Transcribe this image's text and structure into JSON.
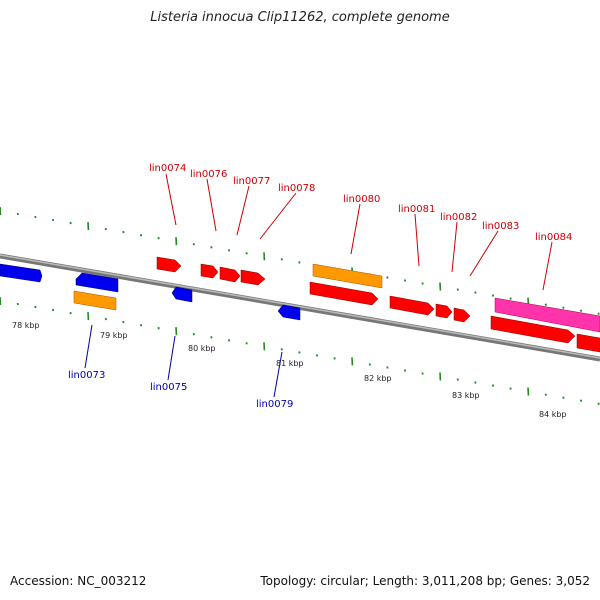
{
  "title": "Listeria innocua Clip11262, complete genome",
  "footer": {
    "accession": "Accession: NC_003212",
    "summary": "Topology: circular; Length: 3,011,208 bp; Genes: 3,052"
  },
  "colors": {
    "backbone": "#888888",
    "tick": "#228b22",
    "gene_red": "#ff0000",
    "gene_orange": "#ff9900",
    "gene_blue": "#0000ff",
    "gene_pink": "#ff33aa",
    "label_top": "#cc0000",
    "label_bottom": "#0000aa"
  },
  "kbp_labels": [
    "78 kbp",
    "79 kbp",
    "80 kbp",
    "81 kbp",
    "82 kbp",
    "83 kbp",
    "84 kbp"
  ],
  "top_labels": [
    "lin0074",
    "lin0076",
    "lin0077",
    "lin0078",
    "lin0080",
    "lin0081",
    "lin0082",
    "lin0083",
    "lin0084"
  ],
  "bottom_labels": [
    "lin0073",
    "lin0075",
    "lin0079"
  ]
}
